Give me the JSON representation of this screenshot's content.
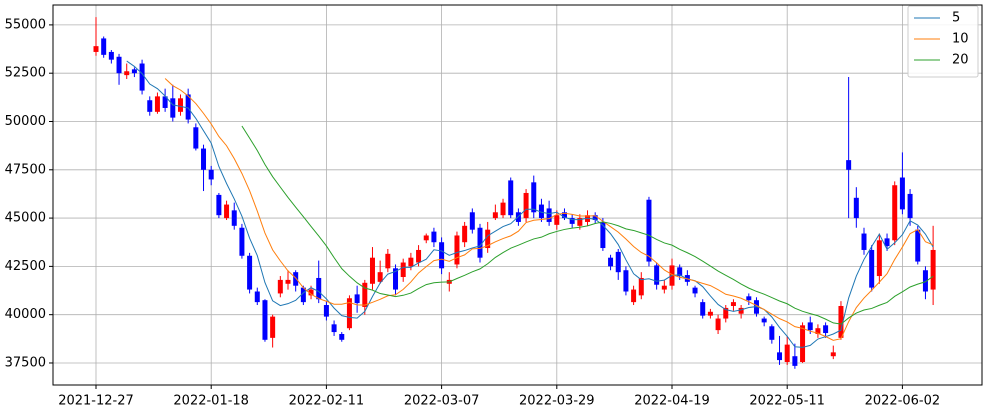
{
  "chart_data": {
    "type": "candlestick",
    "categories": [
      "2021-12-27",
      null,
      null,
      null,
      null,
      null,
      null,
      null,
      null,
      null,
      null,
      null,
      null,
      null,
      null,
      "2022-01-18",
      null,
      null,
      null,
      null,
      null,
      null,
      null,
      null,
      null,
      null,
      null,
      null,
      null,
      null,
      "2022-02-11",
      null,
      null,
      null,
      null,
      null,
      null,
      null,
      null,
      null,
      null,
      null,
      null,
      null,
      null,
      "2022-03-07",
      null,
      null,
      null,
      null,
      null,
      null,
      null,
      null,
      null,
      null,
      null,
      null,
      null,
      null,
      "2022-03-29",
      null,
      null,
      null,
      null,
      null,
      null,
      null,
      null,
      null,
      null,
      null,
      null,
      null,
      null,
      "2022-04-19",
      null,
      null,
      null,
      null,
      null,
      null,
      null,
      null,
      null,
      null,
      null,
      null,
      null,
      null,
      "2022-05-11",
      null,
      null,
      null,
      null,
      null,
      null,
      null,
      null,
      null,
      null,
      null,
      null,
      null,
      null,
      "2022-06-02",
      null,
      null,
      null,
      null
    ],
    "open": [
      53600,
      54300,
      53600,
      53350,
      52400,
      52700,
      53000,
      51100,
      50500,
      51300,
      51200,
      50500,
      51400,
      49700,
      48600,
      47500,
      46200,
      45000,
      45400,
      44500,
      43050,
      41200,
      40750,
      38800,
      41100,
      41600,
      42200,
      41400,
      41000,
      41900,
      40500,
      39500,
      39000,
      39300,
      41050,
      40400,
      41600,
      41700,
      42400,
      42400,
      41950,
      42500,
      42700,
      43850,
      44300,
      43750,
      41600,
      42600,
      43750,
      45300,
      44500,
      43450,
      45000,
      45150,
      46950,
      45300,
      45000,
      46850,
      45700,
      45500,
      44650,
      45300,
      45000,
      44600,
      44800,
      45150,
      44800,
      42950,
      43250,
      42300,
      40650,
      41000,
      45950,
      42550,
      41300,
      41500,
      42450,
      42050,
      41400,
      40650,
      39950,
      39200,
      39800,
      40450,
      40050,
      40950,
      40750,
      39800,
      39400,
      38050,
      37550,
      37850,
      37550,
      39600,
      39000,
      39450,
      37850,
      38800,
      48000,
      46050,
      44200,
      43350,
      42000,
      43950,
      43850,
      47100,
      46250,
      44400,
      42300,
      41300
    ],
    "high": [
      55400,
      54400,
      53700,
      53500,
      53000,
      52800,
      53200,
      51300,
      51500,
      51700,
      51900,
      51400,
      51700,
      49900,
      48800,
      47700,
      46300,
      45900,
      45800,
      44700,
      43200,
      41400,
      40800,
      40000,
      42000,
      42300,
      42300,
      41500,
      41500,
      42800,
      40700,
      39700,
      39100,
      41000,
      41500,
      41800,
      43500,
      42800,
      43400,
      42600,
      42900,
      43200,
      43600,
      44200,
      44500,
      44000,
      42200,
      44300,
      44800,
      45500,
      44700,
      44800,
      45700,
      46000,
      47100,
      45500,
      46500,
      47200,
      46000,
      45900,
      45400,
      45500,
      45200,
      45200,
      45400,
      45300,
      45000,
      43100,
      43400,
      42500,
      41500,
      42200,
      46100,
      42700,
      41800,
      42900,
      42600,
      42300,
      41500,
      40800,
      40300,
      40000,
      40500,
      40800,
      40500,
      41100,
      40900,
      39900,
      39500,
      38900,
      38900,
      38500,
      39600,
      39900,
      39500,
      39600,
      38400,
      40700,
      52300,
      46600,
      44500,
      43600,
      44200,
      44200,
      46900,
      48400,
      46500,
      44600,
      42500,
      44600
    ],
    "low": [
      53400,
      53300,
      53000,
      51900,
      52200,
      52300,
      51400,
      50300,
      50400,
      50500,
      50000,
      50300,
      49900,
      48500,
      46400,
      46700,
      45000,
      44900,
      44400,
      42900,
      41100,
      40500,
      38600,
      38300,
      40900,
      41300,
      41200,
      40500,
      40800,
      40600,
      39700,
      38900,
      38600,
      39200,
      40100,
      40000,
      41300,
      41600,
      42200,
      41000,
      41700,
      42300,
      42500,
      43700,
      43500,
      42100,
      41200,
      42400,
      43500,
      44200,
      42700,
      43200,
      44900,
      45000,
      45000,
      44600,
      44800,
      45000,
      44800,
      44600,
      44400,
      44900,
      44500,
      44400,
      44600,
      44700,
      43300,
      42300,
      41800,
      41000,
      40500,
      40800,
      42500,
      41300,
      41100,
      41300,
      41800,
      41500,
      40900,
      39800,
      39800,
      39000,
      39600,
      40200,
      39800,
      40500,
      39900,
      39400,
      38500,
      37400,
      37400,
      37200,
      37500,
      39000,
      38800,
      38800,
      37700,
      38700,
      45000,
      44500,
      43100,
      41200,
      41600,
      43300,
      43600,
      45200,
      44600,
      42600,
      40800,
      40500
    ],
    "close": [
      53900,
      53450,
      53200,
      52500,
      52600,
      52500,
      51600,
      50500,
      51300,
      50700,
      50200,
      51200,
      50100,
      48600,
      47500,
      47000,
      45150,
      45700,
      44600,
      43050,
      41300,
      40650,
      38700,
      39900,
      41800,
      41800,
      41500,
      40650,
      41300,
      40800,
      39900,
      39100,
      38700,
      40850,
      40600,
      41650,
      42950,
      42200,
      43150,
      41300,
      42700,
      42950,
      43350,
      44100,
      43750,
      42400,
      41800,
      44100,
      44600,
      44400,
      42950,
      44400,
      45300,
      45800,
      45150,
      44800,
      46300,
      45300,
      45000,
      44800,
      45150,
      45000,
      44700,
      45000,
      45150,
      44900,
      43450,
      42500,
      42200,
      41200,
      41300,
      41900,
      42750,
      41550,
      41500,
      42550,
      42000,
      41700,
      41100,
      39950,
      40150,
      39800,
      40350,
      40650,
      40350,
      40750,
      40050,
      39600,
      38700,
      37650,
      38450,
      37350,
      39450,
      39200,
      39300,
      39050,
      38050,
      40450,
      47500,
      45000,
      43350,
      41400,
      43850,
      43550,
      46700,
      45450,
      45000,
      42750,
      41200,
      43350
    ],
    "up_color": "#ff0000",
    "down_color": "#0000ff",
    "series": [
      {
        "name": "5",
        "color": "#1f77b4",
        "values": [
          null,
          null,
          null,
          null,
          53130,
          52850,
          52480,
          51940,
          51700,
          51320,
          50860,
          50780,
          50700,
          50160,
          49520,
          48880,
          47670,
          46790,
          45990,
          45100,
          43960,
          43060,
          41660,
          40720,
          40470,
          40570,
          40740,
          41130,
          41400,
          41200,
          40820,
          40340,
          39950,
          39860,
          39820,
          40170,
          40940,
          41640,
          42100,
          42240,
          42450,
          42450,
          42680,
          42870,
          43360,
          43300,
          43070,
          43220,
          43320,
          43450,
          43560,
          44080,
          44320,
          44560,
          44710,
          45080,
          45460,
          45460,
          45300,
          45230,
          45300,
          45040,
          44920,
          44920,
          44990,
          44940,
          44630,
          44190,
          43630,
          42840,
          42120,
          41810,
          41860,
          41730,
          41790,
          42040,
          42060,
          41850,
          41760,
          41450,
          40970,
          40530,
          40260,
          40170,
          40250,
          40370,
          40420,
          40270,
          39880,
          39340,
          38880,
          38340,
          38310,
          38410,
          38740,
          38860,
          39000,
          39200,
          40860,
          42000,
          42860,
          43530,
          44170,
          43380,
          43720,
          44140,
          44860,
          44640,
          44170,
          43500
        ]
      },
      {
        "name": "10",
        "color": "#ff7f0e",
        "values": [
          null,
          null,
          null,
          null,
          null,
          null,
          null,
          null,
          null,
          52225,
          51855,
          51630,
          51320,
          50930,
          50420,
          49870,
          49225,
          48745,
          48075,
          47310,
          46420,
          45365,
          44225,
          43355,
          42785,
          42265,
          41900,
          41395,
          41060,
          40835,
          40695,
          40540,
          40540,
          40630,
          40510,
          40495,
          40640,
          40795,
          40980,
          41030,
          41310,
          41695,
          42160,
          42485,
          42800,
          42875,
          42760,
          42950,
          43095,
          43405,
          43430,
          43575,
          43770,
          43940,
          44080,
          44320,
          44770,
          44890,
          44930,
          44970,
          45190,
          45250,
          45190,
          45110,
          45110,
          45120,
          44835,
          44555,
          44275,
          43915,
          43530,
          43220,
          43025,
          42680,
          42315,
          42080,
          41935,
          41855,
          41745,
          41620,
          41505,
          41295,
          41055,
          40965,
          40850,
          40670,
          40475,
          40265,
          40025,
          39795,
          39625,
          39380,
          39290,
          39145,
          39040,
          38870,
          38670,
          38755,
          39635,
          40370,
          40860,
          41265,
          41685,
          42120,
          42860,
          43500,
          44195,
          44405,
          43775,
          43610
        ]
      },
      {
        "name": "20",
        "color": "#2ca02c",
        "values": [
          null,
          null,
          null,
          null,
          null,
          null,
          null,
          null,
          null,
          null,
          null,
          null,
          null,
          null,
          null,
          null,
          null,
          null,
          null,
          49768,
          49138,
          48498,
          47773,
          47143,
          46603,
          46068,
          45563,
          45070,
          44568,
          44073,
          43558,
          42953,
          42383,
          41993,
          41648,
          41380,
          41270,
          41095,
          41020,
          40933,
          41003,
          41118,
          41350,
          41558,
          41655,
          41685,
          41700,
          41873,
          42038,
          42218,
          42370,
          42635,
          42965,
          43213,
          43440,
          43598,
          43765,
          43920,
          44013,
          44188,
          44310,
          44413,
          44480,
          44525,
          44595,
          44720,
          44803,
          44723,
          44603,
          44443,
          44360,
          44235,
          44108,
          43895,
          43713,
          43600,
          43385,
          43205,
          43010,
          42768,
          42518,
          42258,
          42040,
          41823,
          41583,
          41375,
          41205,
          41060,
          40885,
          40708,
          40565,
          40338,
          40173,
          40055,
          39945,
          39770,
          39573,
          39510,
          39830,
          40083,
          40243,
          40323,
          40488,
          40633,
          40950,
          41185,
          41433,
          41580,
          41705,
          41990
        ]
      }
    ],
    "ylim": [
      36360,
      56030
    ],
    "yticks": [
      37500,
      40000,
      42500,
      45000,
      47500,
      50000,
      52500,
      55000
    ],
    "grid": true,
    "legend": "upper right"
  }
}
